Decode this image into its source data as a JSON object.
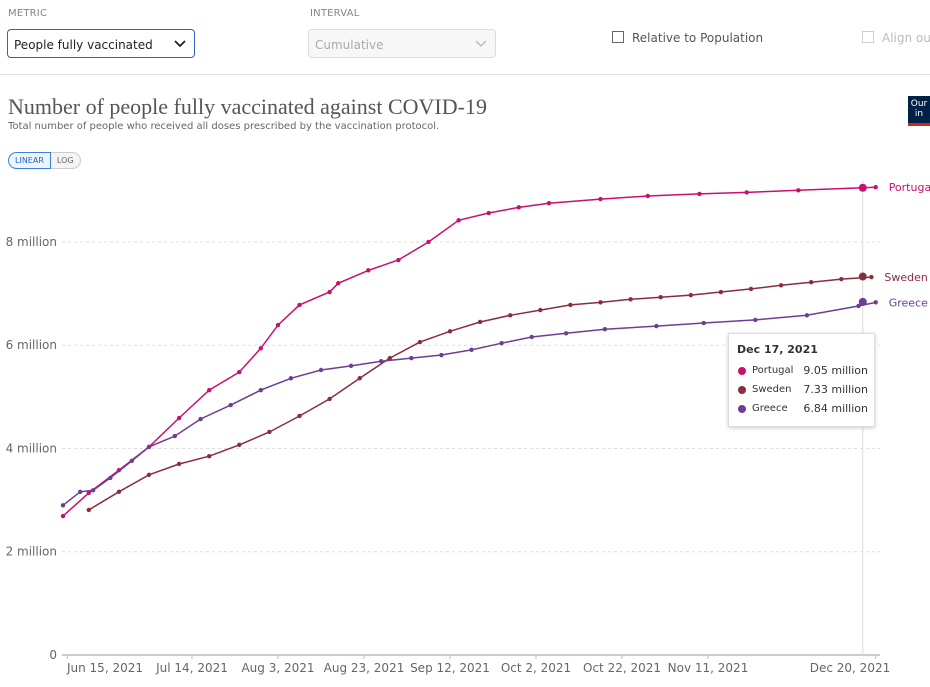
{
  "controls": {
    "metric_label": "METRIC",
    "metric_value": "People fully vaccinated",
    "interval_label": "INTERVAL",
    "interval_value": "Cumulative",
    "relative_label": "Relative to Population",
    "align_label": "Align out"
  },
  "scale_buttons": [
    "LINEAR",
    "LOG"
  ],
  "logo": [
    "Our",
    "in"
  ],
  "chart_data": {
    "type": "line",
    "title": "Number of people fully vaccinated against COVID-19",
    "subtitle": "Total number of people who received all doses prescribed by the vaccination protocol.",
    "xlim": [
      "2021-06-14",
      "2021-12-21"
    ],
    "xticks": [
      {
        "value": "2021-06-15",
        "label": "Jun 15, 2021"
      },
      {
        "value": "2021-07-14",
        "label": "Jul 14, 2021"
      },
      {
        "value": "2021-08-03",
        "label": "Aug 3, 2021"
      },
      {
        "value": "2021-08-23",
        "label": "Aug 23, 2021"
      },
      {
        "value": "2021-09-12",
        "label": "Sep 12, 2021"
      },
      {
        "value": "2021-10-02",
        "label": "Oct 2, 2021"
      },
      {
        "value": "2021-10-22",
        "label": "Oct 22, 2021"
      },
      {
        "value": "2021-11-11",
        "label": "Nov 11, 2021"
      },
      {
        "value": "2021-12-20",
        "label": "Dec 20, 2021"
      }
    ],
    "ylim": [
      0,
      9200000
    ],
    "yticks": [
      0,
      {
        "value": 2000000,
        "label": "2 million"
      },
      {
        "value": 4000000,
        "label": "4 million"
      },
      {
        "value": 6000000,
        "label": "6 million"
      },
      {
        "value": 8000000,
        "label": "8 million"
      }
    ],
    "grid": true,
    "series": [
      {
        "name": "Portugal",
        "color": "#c8106e",
        "x": [
          "2021-06-14",
          "2021-06-20",
          "2021-06-27",
          "2021-07-04",
          "2021-07-11",
          "2021-07-18",
          "2021-07-25",
          "2021-07-30",
          "2021-08-03",
          "2021-08-08",
          "2021-08-15",
          "2021-08-17",
          "2021-08-24",
          "2021-08-31",
          "2021-09-07",
          "2021-09-14",
          "2021-09-21",
          "2021-09-28",
          "2021-10-05",
          "2021-10-17",
          "2021-10-28",
          "2021-11-09",
          "2021-11-20",
          "2021-12-02",
          "2021-12-20"
        ],
        "values": [
          2690000,
          3140000,
          3580000,
          4030000,
          4590000,
          5130000,
          5480000,
          5940000,
          6390000,
          6780000,
          7030000,
          7200000,
          7450000,
          7650000,
          8000000,
          8420000,
          8560000,
          8670000,
          8750000,
          8830000,
          8890000,
          8930000,
          8960000,
          9000000,
          9060000
        ]
      },
      {
        "name": "Sweden",
        "color": "#8a2d3c",
        "x": [
          "2021-06-20",
          "2021-06-27",
          "2021-07-04",
          "2021-07-11",
          "2021-07-18",
          "2021-07-25",
          "2021-08-01",
          "2021-08-08",
          "2021-08-15",
          "2021-08-22",
          "2021-08-29",
          "2021-09-05",
          "2021-09-12",
          "2021-09-19",
          "2021-09-26",
          "2021-10-03",
          "2021-10-10",
          "2021-10-17",
          "2021-10-24",
          "2021-10-31",
          "2021-11-07",
          "2021-11-14",
          "2021-11-21",
          "2021-11-28",
          "2021-12-05",
          "2021-12-12",
          "2021-12-19"
        ],
        "values": [
          2810000,
          3160000,
          3490000,
          3700000,
          3850000,
          4070000,
          4320000,
          4630000,
          4960000,
          5360000,
          5750000,
          6060000,
          6270000,
          6450000,
          6580000,
          6680000,
          6780000,
          6830000,
          6890000,
          6930000,
          6970000,
          7030000,
          7090000,
          7160000,
          7220000,
          7280000,
          7320000
        ]
      },
      {
        "name": "Greece",
        "color": "#6d3e91",
        "x": [
          "2021-06-14",
          "2021-06-18",
          "2021-06-21",
          "2021-06-25",
          "2021-06-30",
          "2021-07-04",
          "2021-07-10",
          "2021-07-16",
          "2021-07-23",
          "2021-07-30",
          "2021-08-06",
          "2021-08-13",
          "2021-08-20",
          "2021-08-27",
          "2021-09-03",
          "2021-09-10",
          "2021-09-17",
          "2021-09-24",
          "2021-10-01",
          "2021-10-09",
          "2021-10-18",
          "2021-10-30",
          "2021-11-10",
          "2021-11-22",
          "2021-12-04",
          "2021-12-16",
          "2021-12-20"
        ],
        "values": [
          2900000,
          3160000,
          3190000,
          3430000,
          3760000,
          4030000,
          4240000,
          4570000,
          4840000,
          5130000,
          5360000,
          5520000,
          5600000,
          5690000,
          5750000,
          5810000,
          5910000,
          6040000,
          6160000,
          6230000,
          6310000,
          6370000,
          6430000,
          6490000,
          6580000,
          6760000,
          6830000
        ]
      }
    ],
    "tooltip": {
      "date": "Dec 17, 2021",
      "values": [
        9050000,
        7330000,
        6840000
      ],
      "value_labels": [
        "9.05 million",
        "7.33 million",
        "6.84 million"
      ]
    }
  }
}
